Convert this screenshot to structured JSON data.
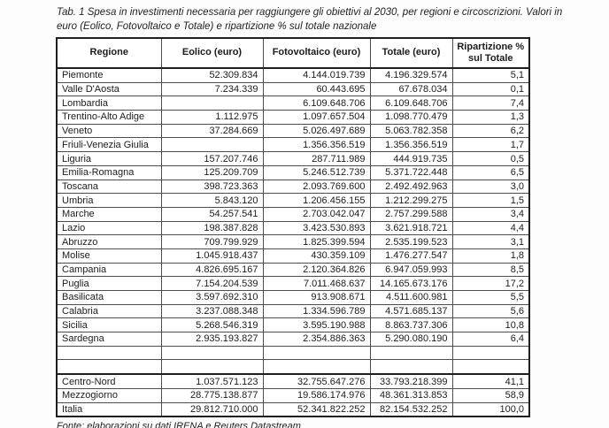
{
  "caption": "Tab. 1 Spesa in investimenti necessaria per raggiungere gli obiettivi al 2030, per regioni e circoscrizioni. Valori in euro (Eolico, Fotovoltaico e Totale) e ripartizione % sul totale nazionale",
  "source": "Fonte: elaborazioni su dati IRENA e Reuters Datastream",
  "table": {
    "headers": [
      "Regione",
      "Eolico (euro)",
      "Fotovoltaico (euro)",
      "Totale (euro)",
      "Ripartizione % sul Totale"
    ],
    "regions": [
      [
        "Piemonte",
        "52.309.834",
        "4.144.019.739",
        "4.196.329.574",
        "5,1"
      ],
      [
        "Valle D'Aosta",
        "7.234.339",
        "60.443.695",
        "67.678.034",
        "0,1"
      ],
      [
        "Lombardia",
        "",
        "6.109.648.706",
        "6.109.648.706",
        "7,4"
      ],
      [
        "Trentino-Alto Adige",
        "1.112.975",
        "1.097.657.504",
        "1.098.770.479",
        "1,3"
      ],
      [
        "Veneto",
        "37.284.669",
        "5.026.497.689",
        "5.063.782.358",
        "6,2"
      ],
      [
        "Friuli-Venezia Giulia",
        "",
        "1.356.356.519",
        "1.356.356.519",
        "1,7"
      ],
      [
        "Liguria",
        "157.207.746",
        "287.711.989",
        "444.919.735",
        "0,5"
      ],
      [
        "Emilia-Romagna",
        "125.209.709",
        "5.246.512.739",
        "5.371.722.448",
        "6,5"
      ],
      [
        "Toscana",
        "398.723.363",
        "2.093.769.600",
        "2.492.492.963",
        "3,0"
      ],
      [
        "Umbria",
        "5.843.120",
        "1.206.456.155",
        "1.212.299.275",
        "1,5"
      ],
      [
        "Marche",
        "54.257.541",
        "2.703.042.047",
        "2.757.299.588",
        "3,4"
      ],
      [
        "Lazio",
        "198.387.828",
        "3.423.530.893",
        "3.621.918.721",
        "4,4"
      ],
      [
        "Abruzzo",
        "709.799.929",
        "1.825.399.594",
        "2.535.199.523",
        "3,1"
      ],
      [
        "Molise",
        "1.045.918.437",
        "430.359.109",
        "1.476.277.547",
        "1,8"
      ],
      [
        "Campania",
        "4.826.695.167",
        "2.120.364.826",
        "6.947.059.993",
        "8,5"
      ],
      [
        "Puglia",
        "7.154.204.539",
        "7.011.468.637",
        "14.165.673.176",
        "17,2"
      ],
      [
        "Basilicata",
        "3.597.692.310",
        "913.908.671",
        "4.511.600.981",
        "5,5"
      ],
      [
        "Calabria",
        "3.237.088.348",
        "1.334.596.789",
        "4.571.685.137",
        "5,6"
      ],
      [
        "Sicilia",
        "5.268.546.319",
        "3.595.190.988",
        "8.863.737.306",
        "10,8"
      ],
      [
        "Sardegna",
        "2.935.193.827",
        "2.354.886.363",
        "5.290.080.190",
        "6,4"
      ]
    ],
    "spacer_rows": 2,
    "totals": [
      [
        "Centro-Nord",
        "1.037.571.123",
        "32.755.647.276",
        "33.793.218.399",
        "41,1"
      ],
      [
        "Mezzogiorno",
        "28.775.138.877",
        "19.586.174.976",
        "48.361.313.853",
        "58,9"
      ],
      [
        "Italia",
        "29.812.710.000",
        "52.341.822.252",
        "82.154.532.252",
        "100,0"
      ]
    ]
  }
}
